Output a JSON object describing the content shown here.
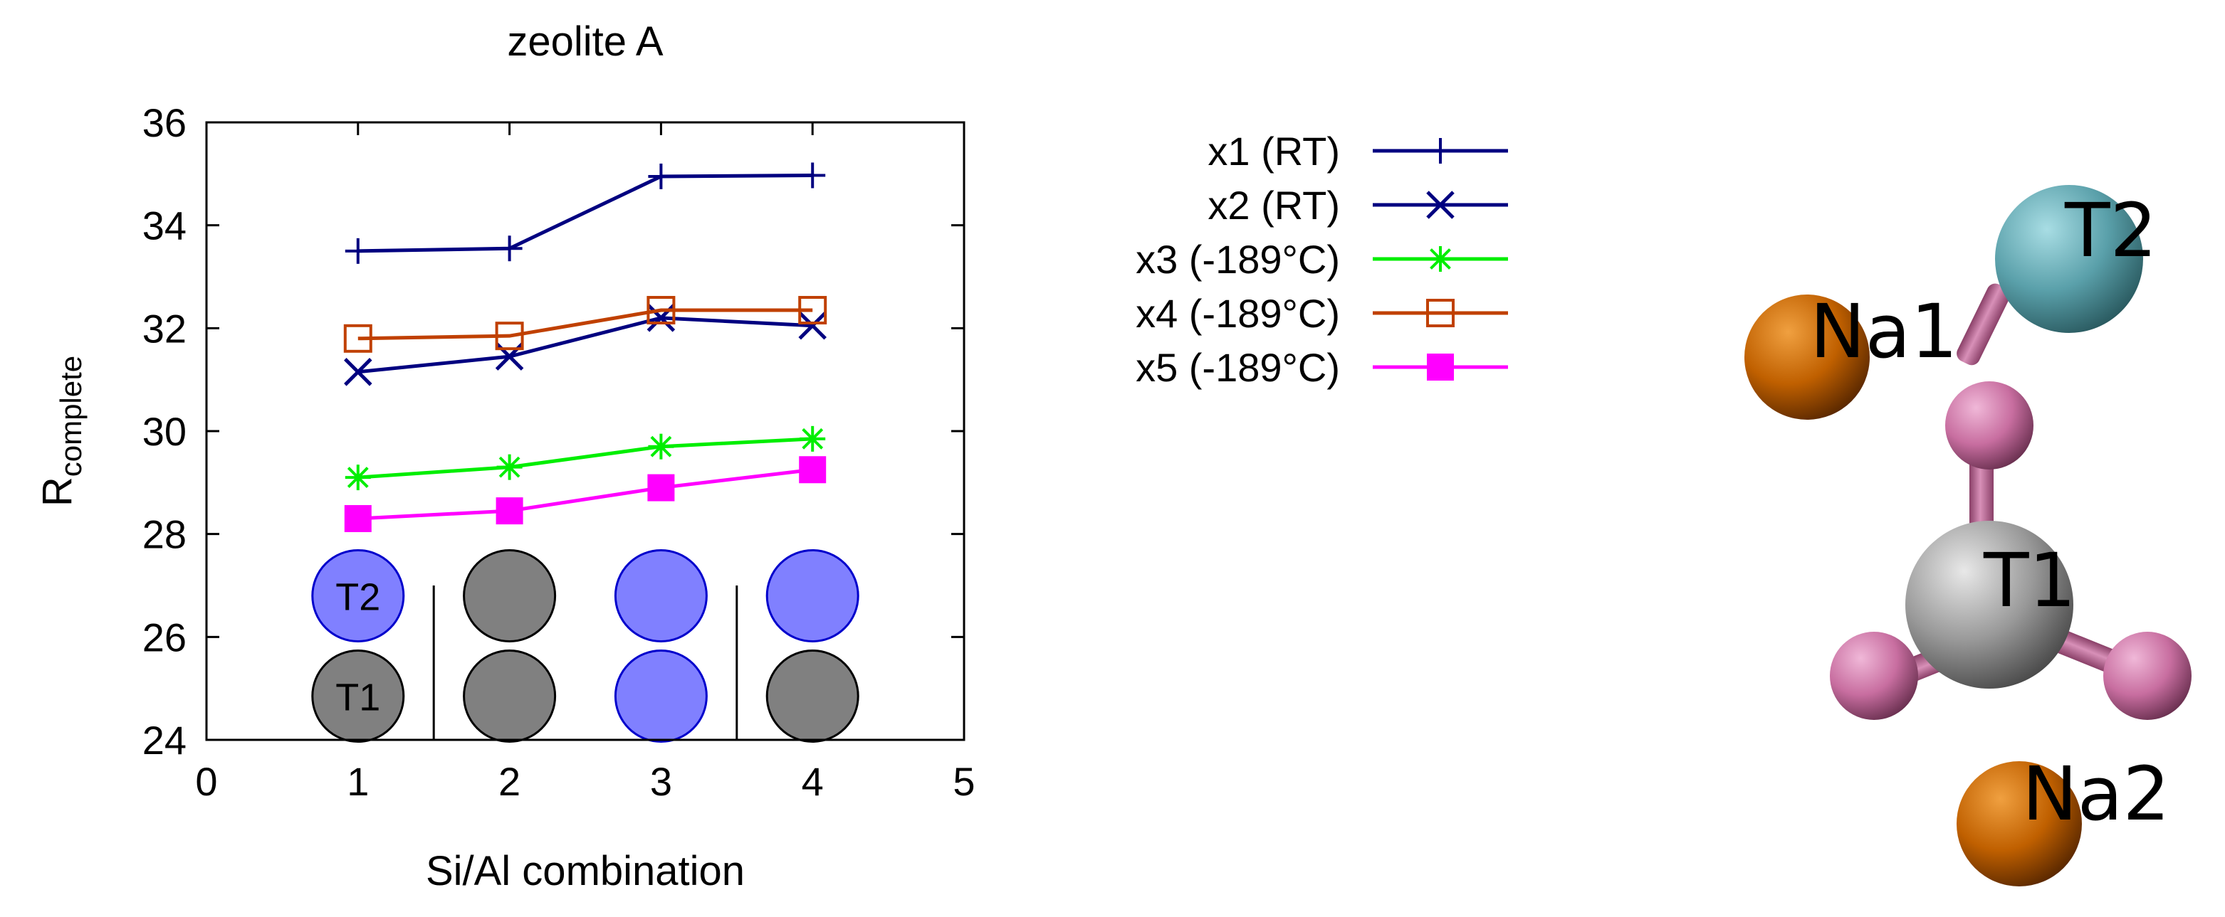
{
  "chart_data": {
    "type": "line",
    "title": "zeolite A",
    "xlabel": "Si/Al combination",
    "ylabel_main": "R",
    "ylabel_sub": "complete",
    "xlim": [
      0,
      5
    ],
    "ylim": [
      24,
      36
    ],
    "xticks": [
      0,
      1,
      2,
      3,
      4,
      5
    ],
    "yticks": [
      24,
      26,
      28,
      30,
      32,
      34,
      36
    ],
    "x": [
      1,
      2,
      3,
      4
    ],
    "legend_position": "outside-right",
    "series": [
      {
        "name": "x1 (RT)",
        "color": "#000080",
        "marker": "plus",
        "values": [
          33.5,
          33.55,
          34.95,
          34.97
        ]
      },
      {
        "name": "x2 (RT)",
        "color": "#000080",
        "marker": "cross",
        "values": [
          31.15,
          31.45,
          32.2,
          32.05
        ]
      },
      {
        "name": "x3 (-189°C)",
        "color": "#00ee00",
        "marker": "star",
        "values": [
          29.1,
          29.3,
          29.7,
          29.85
        ]
      },
      {
        "name": "x4 (-189°C)",
        "color": "#c04000",
        "marker": "open-square",
        "values": [
          31.8,
          31.85,
          32.35,
          32.35
        ]
      },
      {
        "name": "x5 (-189°C)",
        "color": "#ff00ff",
        "marker": "filled-square",
        "values": [
          28.3,
          28.45,
          28.9,
          29.25
        ]
      }
    ],
    "site_diagram": {
      "t2_label": "T2",
      "t1_label": "T1",
      "columns": [
        {
          "x": 1,
          "t2": "Al",
          "t1": "Si"
        },
        {
          "x": 2,
          "t2": "Si",
          "t1": "Si"
        },
        {
          "x": 3,
          "t2": "Al",
          "t1": "Al"
        },
        {
          "x": 4,
          "t2": "Al",
          "t1": "Si"
        }
      ],
      "colors": {
        "Al": "#8080ff",
        "Si": "#808080"
      }
    }
  },
  "molecule": {
    "labels": {
      "t2": "T2",
      "na1": "Na1",
      "t1": "T1",
      "na2": "Na2"
    },
    "colors": {
      "na": "#c06000",
      "t2": "#5aa0aa",
      "t1": "#999999",
      "o": "#c86ea0"
    }
  }
}
